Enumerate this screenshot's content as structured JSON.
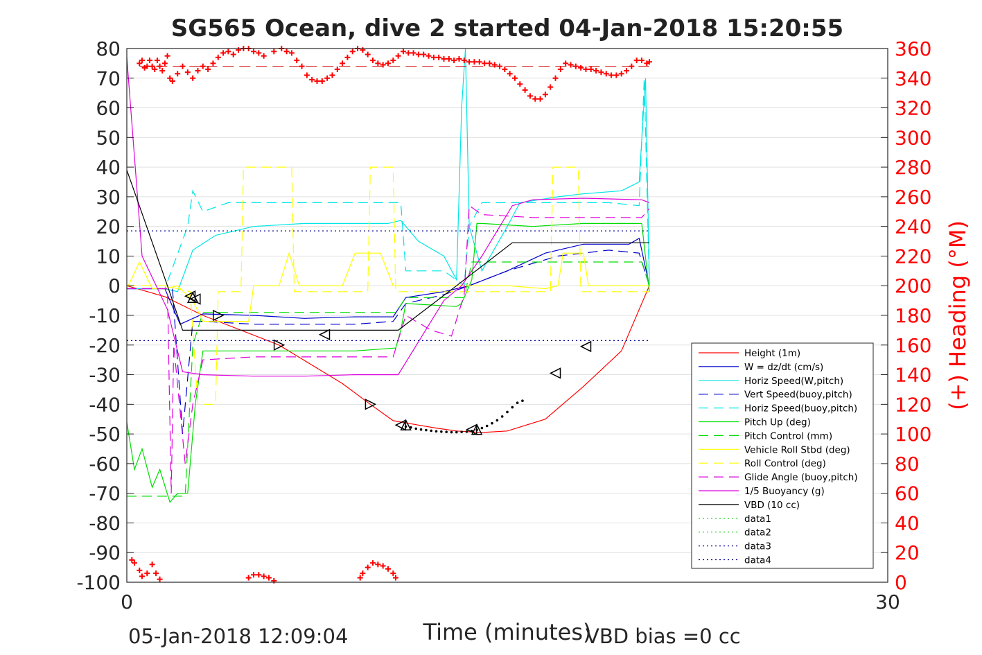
{
  "chart_data": {
    "type": "line",
    "title": "SG565 Ocean, dive 2 started 04-Jan-2018 15:20:55",
    "xlabel": "Time (minutes)",
    "ylabel_right": "(+) Heading (°M)",
    "footer_left": "05-Jan-2018 12:09:04",
    "footer_right": "VBD bias =0 cc",
    "xlim": [
      0,
      30
    ],
    "ylim": [
      -100,
      80
    ],
    "y2lim": [
      0,
      360
    ],
    "xticks": [
      "0",
      "30"
    ],
    "yticks": [
      "80",
      "70",
      "60",
      "50",
      "40",
      "30",
      "20",
      "10",
      "0",
      "-10",
      "-20",
      "-30",
      "-40",
      "-50",
      "-60",
      "-70",
      "-80",
      "-90",
      "-100"
    ],
    "y2ticks": [
      "360",
      "340",
      "320",
      "300",
      "280",
      "260",
      "240",
      "220",
      "200",
      "180",
      "160",
      "140",
      "120",
      "100",
      "80",
      "60",
      "40",
      "20",
      "0"
    ],
    "grid": "y-major",
    "legend_position": "lower-right",
    "colors": {
      "height": "#ff0000",
      "w": "#0000cc",
      "horiz": "#00e5e5",
      "pitch": "#00dd00",
      "roll": "#ffff00",
      "glide": "#dd00dd",
      "vbd": "#000000",
      "data": "#00cc00",
      "data_blue": "#000099",
      "heading": "#ff0000"
    },
    "series": [
      {
        "name": "Height (1m)",
        "color": "#ff0000",
        "dash": "solid",
        "x": [
          0,
          1.5,
          3,
          6,
          8.5,
          9.6,
          10.5,
          11.5,
          12.2,
          13,
          14,
          15,
          16.5,
          18,
          19.5,
          20.6
        ],
        "y": [
          0,
          -3.7,
          -10,
          -20,
          -33,
          -40,
          -45.5,
          -47,
          -48,
          -49,
          -49.5,
          -49,
          -45,
          -34,
          -22,
          0
        ]
      },
      {
        "name": "W = dz/dt (cm/s)",
        "color": "#0000cc",
        "dash": "solid",
        "x": [
          0,
          1.5,
          2.1,
          3,
          5,
          7,
          9,
          10.5,
          11,
          12.5,
          13.5,
          15,
          16.5,
          18,
          19.8,
          20.2,
          20.6
        ],
        "y": [
          -1,
          -1,
          -13,
          -9.5,
          -10,
          -11,
          -10.5,
          -10.5,
          -4,
          -2,
          0,
          5,
          11,
          14,
          14,
          16,
          0
        ]
      },
      {
        "name": "Horiz Speed(W,pitch)",
        "color": "#00e5e5",
        "dash": "solid",
        "x": [
          0,
          1.5,
          2,
          2.6,
          3.5,
          5,
          7,
          9,
          10.3,
          10.8,
          11.5,
          12.5,
          13,
          13.2,
          13.35,
          13.5,
          14,
          15,
          15.5,
          17,
          18,
          19.5,
          20.2,
          20.45,
          20.6
        ],
        "y": [
          -1,
          -1,
          -2,
          12,
          17,
          20,
          21,
          21,
          21,
          22,
          15,
          10,
          2,
          60,
          85,
          20,
          5,
          20,
          28,
          30,
          31,
          32,
          35,
          70,
          2
        ]
      },
      {
        "name": "Vert Speed(buoy,pitch)",
        "color": "#0000cc",
        "dash": "dash",
        "x": [
          0,
          1.8,
          2.2,
          2.6,
          3,
          5,
          7,
          9,
          10.5,
          11,
          12.5,
          13.5,
          15,
          17,
          19,
          20.2,
          20.6
        ],
        "y": [
          -1,
          -1,
          -50,
          -12,
          -12,
          -13,
          -13,
          -13,
          -12,
          -6,
          -3,
          0,
          5,
          10,
          12,
          11,
          0
        ]
      },
      {
        "name": "Horiz Speed(buoy,pitch)",
        "color": "#00e5e5",
        "dash": "dash",
        "x": [
          0,
          1.5,
          2.4,
          2.6,
          3,
          4,
          6,
          8,
          10,
          10.8,
          11,
          12.5,
          13.3,
          13.5,
          14,
          15.5,
          17,
          19,
          20.2,
          20.4,
          20.6
        ],
        "y": [
          -1,
          -1,
          20,
          32,
          25,
          28,
          28,
          28,
          28,
          28,
          5,
          5,
          0,
          20,
          28,
          28,
          28,
          28,
          27,
          70,
          0
        ]
      },
      {
        "name": "Pitch Up (deg)",
        "color": "#00dd00",
        "dash": "solid",
        "x": [
          0,
          0.3,
          0.6,
          1,
          1.3,
          1.7,
          2,
          2.4,
          2.7,
          3,
          5,
          7,
          9,
          10.6,
          10.8,
          11,
          13,
          13.2,
          13.6,
          13.8,
          14,
          16,
          18,
          20.3,
          20.6
        ],
        "y": [
          -46,
          -62,
          -55,
          -68,
          -62,
          -73,
          -70,
          -70,
          -40,
          -22,
          -22,
          -22,
          -22,
          -21,
          -15,
          -6,
          -7,
          -6,
          2,
          21,
          21,
          20,
          21,
          21,
          -2
        ]
      },
      {
        "name": "Pitch Control (mm)",
        "color": "#00dd00",
        "dash": "dash",
        "x": [
          0,
          1.8,
          2.3,
          2.6,
          3,
          5,
          7,
          9,
          10.6,
          11,
          13.3,
          13.6,
          14,
          16,
          18,
          20.3,
          20.6
        ],
        "y": [
          -71,
          -71,
          -71,
          -20,
          -9,
          -9,
          -9,
          -9,
          -9,
          -4,
          -4,
          8,
          8,
          8,
          8,
          8,
          0
        ]
      },
      {
        "name": "Vehicle Roll Stbd (deg)",
        "color": "#ffff00",
        "dash": "solid",
        "x": [
          0,
          0.5,
          1,
          1.5,
          2,
          2.6,
          3,
          4,
          4.8,
          5,
          6,
          6.4,
          6.8,
          8.5,
          9,
          10,
          10.5,
          11,
          13,
          14,
          15,
          16.5,
          17,
          17.2,
          18,
          18.2,
          20.6
        ],
        "y": [
          -1,
          8,
          -1,
          -1,
          0,
          -5,
          -12,
          -12,
          -12,
          0,
          0,
          11,
          0,
          0,
          11,
          11,
          0,
          0,
          0,
          0,
          0,
          -1,
          0,
          11,
          11,
          0,
          0
        ]
      },
      {
        "name": "Roll Control (deg)",
        "color": "#ffff00",
        "dash": "dash",
        "x": [
          0,
          1.5,
          2.5,
          2.8,
          3.5,
          3.6,
          4.5,
          4.6,
          5,
          6,
          6.1,
          6.5,
          6.6,
          9.5,
          9.6,
          10.5,
          10.6,
          11,
          13,
          15,
          16.7,
          16.8,
          17.8,
          17.9,
          20.6
        ],
        "y": [
          0,
          0,
          -2,
          -40,
          -40,
          -2,
          -2,
          40,
          40,
          40,
          40,
          40,
          -2,
          -2,
          40,
          40,
          -2,
          -2,
          -2,
          -2,
          -2,
          40,
          40,
          -2,
          -2
        ]
      },
      {
        "name": "Glide Angle (buoy,pitch)",
        "color": "#dd00dd",
        "dash": "dash",
        "x": [
          0,
          1.6,
          1.75,
          1.85,
          2.3,
          2.6,
          3,
          5,
          7,
          9,
          10.5,
          11,
          12,
          12.8,
          13.3,
          13.5,
          14,
          16,
          18,
          20.3,
          20.6
        ],
        "y": [
          -1,
          -1,
          -70,
          -20,
          -60,
          -40,
          -25,
          -24,
          -24,
          -24,
          -24,
          -10,
          -15,
          -17,
          -3,
          27,
          24,
          23,
          23,
          23,
          26
        ]
      },
      {
        "name": "1/5 Buoyancy (g)",
        "color": "#dd00dd",
        "dash": "solid",
        "x": [
          0,
          0.6,
          1.6,
          2.2,
          3,
          5,
          7,
          9,
          10.7,
          12.5,
          13.2,
          14,
          15.2,
          16,
          18,
          20.3,
          20.6
        ],
        "y": [
          77,
          10,
          -8,
          -29,
          -30,
          -30.5,
          -30.5,
          -30,
          -30,
          -5,
          0,
          10,
          27,
          29,
          29.5,
          29,
          28
        ]
      },
      {
        "name": "VBD (10 cc)",
        "color": "#000000",
        "dash": "solid",
        "x": [
          0,
          1.6,
          2.2,
          3,
          10.7,
          13,
          15.2,
          20.6
        ],
        "y": [
          39,
          0,
          -15,
          -15,
          -15,
          0,
          14.5,
          14.5
        ]
      },
      {
        "name": "data1",
        "color": "#00cc00",
        "dash": "dot",
        "x": [],
        "y": []
      },
      {
        "name": "data2",
        "color": "#00cc00",
        "dash": "dot",
        "x": [],
        "y": []
      },
      {
        "name": "data3",
        "color": "#000099",
        "dash": "dot",
        "x": [
          0,
          20.6
        ],
        "y": [
          18.5,
          18.5
        ]
      },
      {
        "name": "data4",
        "color": "#000099",
        "dash": "dot",
        "x": [
          0,
          20.6
        ],
        "y": [
          -18.5,
          -18.5
        ]
      }
    ],
    "triangles_right": [
      [
        3.6,
        -10
      ],
      [
        6,
        -20
      ],
      [
        9.6,
        -40
      ]
    ],
    "triangles_left": [
      [
        2.5,
        -3.5
      ],
      [
        2.7,
        -4.5
      ],
      [
        7.8,
        -16.5
      ],
      [
        10.8,
        -47
      ],
      [
        13.6,
        -48.5
      ],
      [
        16.9,
        -29.5
      ],
      [
        18.1,
        -20.5
      ]
    ],
    "triangles_up": [
      [
        2.6,
        -4
      ],
      [
        11,
        -47
      ],
      [
        13.8,
        -48.5
      ]
    ],
    "dot_markers_x": [
      11.0,
      11.2,
      11.4,
      11.6,
      11.8,
      12.0,
      12.2,
      12.4,
      12.6,
      12.8,
      13.0,
      13.2,
      13.4,
      13.6,
      13.8,
      14.0,
      14.2,
      14.4,
      14.6,
      14.8,
      15.0,
      15.2,
      15.4,
      15.6
    ],
    "dot_markers_y": [
      -47.5,
      -47.8,
      -48.2,
      -48.5,
      -48.7,
      -48.9,
      -49.1,
      -49.2,
      -49.3,
      -49.4,
      -49.4,
      -49.3,
      -49.2,
      -49,
      -48.6,
      -48,
      -47.3,
      -46.4,
      -45.4,
      -44.1,
      -42.6,
      -41,
      -39.5,
      -38.8
    ],
    "heading_mean": 348,
    "heading": {
      "x": [
        0.5,
        0.6,
        0.7,
        0.8,
        0.9,
        1.0,
        1.1,
        1.2,
        1.3,
        1.4,
        1.5,
        1.6,
        1.7,
        1.8,
        2.0,
        2.2,
        2.4,
        2.6,
        2.8,
        3.0,
        3.2,
        3.4,
        3.6,
        3.8,
        4.0,
        4.2,
        4.4,
        4.6,
        4.8,
        5.0,
        5.2,
        5.4,
        5.8,
        6.1,
        6.3,
        6.5,
        6.7,
        6.9,
        7.1,
        7.3,
        7.5,
        7.7,
        7.9,
        8.1,
        8.3,
        8.5,
        8.7,
        8.9,
        9.1,
        9.3,
        9.5,
        9.7,
        9.9,
        10.1,
        10.3,
        10.5,
        10.7,
        10.9,
        11.1,
        11.3,
        11.5,
        11.7,
        11.9,
        12.1,
        12.3,
        12.5,
        12.7,
        12.9,
        13.1,
        13.3,
        13.5,
        13.7,
        13.9,
        14.1,
        14.3,
        14.5,
        14.7,
        14.9,
        15.1,
        15.3,
        15.5,
        15.7,
        15.9,
        16.1,
        16.3,
        16.5,
        16.7,
        16.9,
        17.1,
        17.3,
        17.5,
        17.7,
        17.9,
        18.1,
        18.3,
        18.5,
        18.7,
        18.9,
        19.1,
        19.3,
        19.5,
        19.7,
        19.9,
        20.1,
        20.3,
        20.5,
        20.6
      ],
      "y": [
        350,
        352,
        347,
        348,
        352,
        348,
        346,
        352,
        348,
        345,
        350,
        355,
        340,
        338,
        343,
        348,
        344,
        340,
        345,
        348,
        346,
        350,
        354,
        357,
        358,
        356,
        359,
        360,
        360,
        358,
        357,
        355,
        358,
        360,
        358,
        357,
        352,
        348,
        342,
        339,
        338,
        338,
        340,
        342,
        346,
        350,
        354,
        358,
        360,
        359,
        356,
        352,
        350,
        349,
        350,
        352,
        355,
        358,
        357,
        357,
        356,
        356,
        355,
        354,
        354,
        353,
        353,
        352,
        353,
        352,
        351,
        351,
        351,
        350,
        350,
        349,
        348,
        346,
        343,
        340,
        336,
        332,
        328,
        326,
        326,
        329,
        334,
        340,
        346,
        350,
        349,
        348,
        347,
        346,
        346,
        345,
        344,
        343,
        342,
        342,
        343,
        345,
        348,
        352,
        352,
        350,
        351
      ]
    },
    "heading_low": {
      "x": [
        0.2,
        0.3,
        0.5,
        0.6,
        0.8,
        1.0,
        1.15,
        1.3,
        4.8,
        5.0,
        5.2,
        5.4,
        5.6,
        5.8,
        9.2,
        9.3,
        9.5,
        9.7,
        9.9,
        10.1,
        10.3,
        10.5,
        10.6
      ],
      "y": [
        15,
        13,
        8,
        4,
        6,
        12,
        6,
        2,
        3,
        5,
        5,
        4,
        3,
        1,
        3,
        6,
        10,
        13,
        12,
        11,
        9,
        6,
        3
      ]
    }
  }
}
